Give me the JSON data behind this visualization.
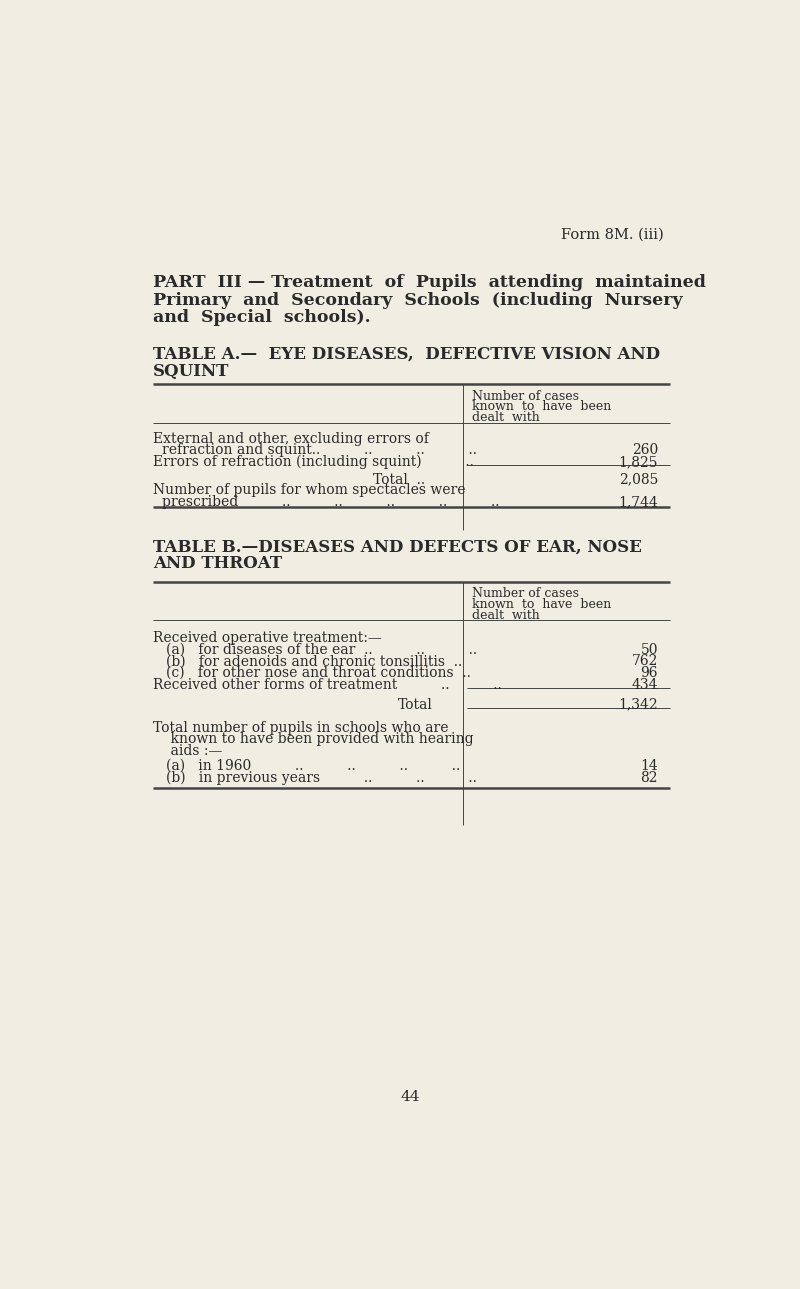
{
  "bg_color": "#f2ede3",
  "text_color": "#2a2a2a",
  "form_label": "Form 8M. (iii)",
  "part_line1": "PART  III — Treatment  of  Pupils  attending  maintained",
  "part_line2": "Primary  and  Secondary  Schools  (including  Nursery",
  "part_line3": "and  Special  schools).",
  "table_a_title1": "TABLE A.—  EYE DISEASES,  DEFECTIVE VISION AND",
  "table_a_title2": "SQUINT",
  "table_b_title1": "TABLE B.—DISEASES AND DEFECTS OF EAR, NOSE",
  "table_b_title2": "AND THROAT",
  "col_header1": "Number of cases",
  "col_header2": "known  to  have  been",
  "col_header3": "dealt  with",
  "page_number": "44",
  "bg_color_hex": "#f2ede3",
  "line_color": "#444444",
  "thick_lw": 1.8,
  "thin_lw": 0.7
}
